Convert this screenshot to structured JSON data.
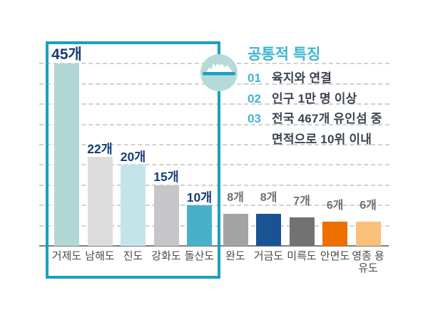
{
  "colors": {
    "accent_frame": "#1a9fc4",
    "accent_teal_text": "#3db5cf",
    "value_label_navy": "#173e76",
    "value_label_gray": "#6f6f6f",
    "category_label": "#4a4a4a",
    "axis_line": "#7e7e7e",
    "gridline": "#d0d0d0",
    "badge_fill": "#b5dbd9"
  },
  "legend": {
    "title": "공통적 특징",
    "items": [
      {
        "num": "01",
        "text": "육지와 연결"
      },
      {
        "num": "02",
        "text": "인구 1만 명 이상"
      },
      {
        "num": "03",
        "text": "전국 467개 유인섬 중"
      },
      {
        "num": "",
        "text": "면적으로 10위 이내"
      }
    ]
  },
  "chart_data": {
    "type": "bar",
    "title": "",
    "xlabel": "",
    "ylabel": "",
    "ylim": [
      0,
      47
    ],
    "grid": "dashed horizontal",
    "gridline_values": [
      5,
      10,
      15,
      20,
      25,
      30,
      35,
      40,
      45
    ],
    "unit_suffix": "개",
    "groups": [
      {
        "name": "highlighted-islands",
        "bars": [
          {
            "category": "거제도",
            "value": 45,
            "value_label": "45개",
            "color": "#b2d8d5"
          },
          {
            "category": "남해도",
            "value": 22,
            "value_label": "22개",
            "color": "#dcdcdc"
          },
          {
            "category": "진도",
            "value": 20,
            "value_label": "20개",
            "color": "#c3e5ea"
          },
          {
            "category": "강화도",
            "value": 15,
            "value_label": "15개",
            "color": "#c6c6c8"
          },
          {
            "category": "돌산도",
            "value": 10,
            "value_label": "10개",
            "color": "#47b1ca"
          }
        ]
      },
      {
        "name": "other-islands",
        "bars": [
          {
            "category": "완도",
            "value": 8,
            "value_label": "8개",
            "color": "#a3a3a3"
          },
          {
            "category": "거금도",
            "value": 8,
            "value_label": "8개",
            "color": "#1a5294"
          },
          {
            "category": "미륵도",
            "value": 7,
            "value_label": "7개",
            "color": "#737173"
          },
          {
            "category": "안면도",
            "value": 6,
            "value_label": "6개",
            "color": "#ed6f00"
          },
          {
            "category": "영종 용유도",
            "value": 6,
            "value_label": "6개",
            "color": "#f8c078"
          }
        ]
      }
    ]
  }
}
